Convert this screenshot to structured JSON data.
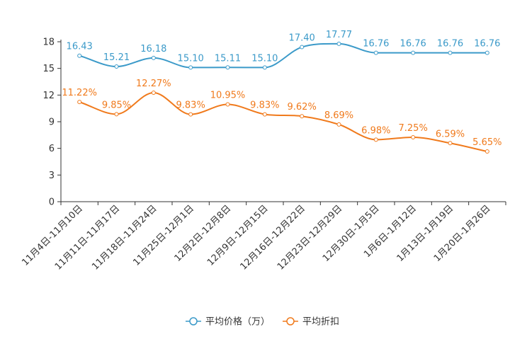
{
  "chart_data": {
    "type": "line",
    "categories": [
      "11月4日-11月10日",
      "11月11日-11月17日",
      "11月18日-11月24日",
      "11月25日-12月1日",
      "12月2日-12月8日",
      "12月9日-12月15日",
      "12月16日-12月22日",
      "12月23日-12月29日",
      "12月30日-1月5日",
      "1月6日-1月12日",
      "1月13日-1月19日",
      "1月20日-1月26日"
    ],
    "ylim": [
      0,
      18
    ],
    "yticks": [
      0,
      3,
      6,
      9,
      12,
      15,
      18
    ],
    "series": [
      {
        "name": "平均价格（万）",
        "color": "#3b9ac9",
        "values": [
          16.43,
          15.21,
          16.18,
          15.1,
          15.11,
          15.1,
          17.4,
          17.77,
          16.76,
          16.76,
          16.76,
          16.76
        ],
        "labels": [
          "16.43",
          "15.21",
          "16.18",
          "15.10",
          "15.11",
          "15.10",
          "17.40",
          "17.77",
          "16.76",
          "16.76",
          "16.76",
          "16.76"
        ]
      },
      {
        "name": "平均折扣",
        "color": "#f07a1c",
        "values": [
          11.22,
          9.85,
          12.27,
          9.83,
          10.95,
          9.83,
          9.62,
          8.69,
          6.98,
          7.25,
          6.59,
          5.65
        ],
        "labels": [
          "11.22%",
          "9.85%",
          "12.27%",
          "9.83%",
          "10.95%",
          "9.83%",
          "9.62%",
          "8.69%",
          "6.98%",
          "7.25%",
          "6.59%",
          "5.65%"
        ]
      }
    ],
    "legend_position": "bottom-center"
  }
}
